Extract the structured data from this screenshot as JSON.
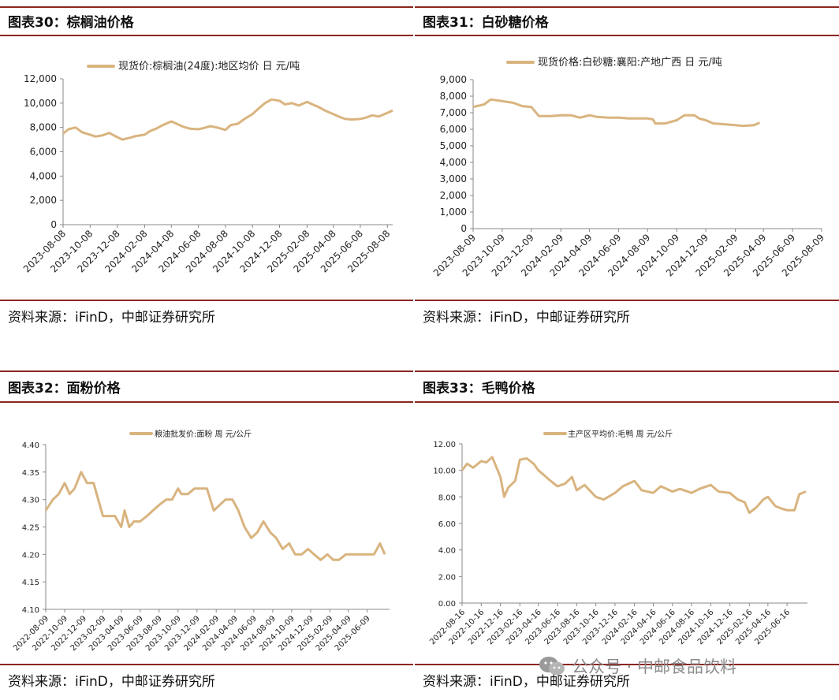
{
  "panels": [
    {
      "title": "图表30：棕榈油价格",
      "source": "资料来源：iFinD，中邮证券研究所"
    },
    {
      "title": "图表31：白砂糖价格",
      "source": "资料来源：iFinD，中邮证券研究所"
    },
    {
      "title": "图表32：面粉价格",
      "source": "资料来源：iFinD，中邮证券研究所"
    },
    {
      "title": "图表33：毛鸭价格",
      "source": "资料来源：iFinD，中邮证券研究所"
    }
  ],
  "watermark": "公众号 · 中邮食品饮料",
  "colors": {
    "line": "#d9b47f",
    "rule": "#8b2520",
    "axis": "#888888"
  },
  "chart_data": [
    {
      "type": "line",
      "title": "",
      "legend": "现货价:棕榈油(24度):地区均价 日 元/吨",
      "legend_position": "top-left",
      "grid": false,
      "ylim": [
        0,
        12000
      ],
      "yticks": [
        "0",
        "2,000",
        "4,000",
        "6,000",
        "8,000",
        "10,000",
        "12,000"
      ],
      "xticks": [
        "2023-08-08",
        "2023-10-08",
        "2023-12-08",
        "2024-02-08",
        "2024-04-08",
        "2024-06-08",
        "2024-08-08",
        "2024-10-08",
        "2024-12-08",
        "2025-02-08",
        "2025-04-08",
        "2025-06-08",
        "2025-08-08"
      ],
      "x_range": [
        "2023-08-08",
        "2025-08-20"
      ],
      "series": [
        {
          "name": "现货价:棕榈油(24度):地区均价 日 元/吨",
          "points": [
            [
              "2023-08-08",
              7500
            ],
            [
              "2023-08-20",
              7850
            ],
            [
              "2023-09-05",
              8000
            ],
            [
              "2023-09-20",
              7600
            ],
            [
              "2023-10-08",
              7400
            ],
            [
              "2023-10-20",
              7250
            ],
            [
              "2023-11-05",
              7350
            ],
            [
              "2023-11-20",
              7550
            ],
            [
              "2023-12-08",
              7200
            ],
            [
              "2023-12-20",
              7000
            ],
            [
              "2024-01-05",
              7150
            ],
            [
              "2024-01-20",
              7300
            ],
            [
              "2024-02-08",
              7400
            ],
            [
              "2024-02-20",
              7700
            ],
            [
              "2024-03-05",
              7900
            ],
            [
              "2024-03-20",
              8200
            ],
            [
              "2024-04-08",
              8500
            ],
            [
              "2024-04-20",
              8300
            ],
            [
              "2024-05-05",
              8050
            ],
            [
              "2024-05-20",
              7900
            ],
            [
              "2024-06-08",
              7850
            ],
            [
              "2024-06-20",
              7950
            ],
            [
              "2024-07-05",
              8100
            ],
            [
              "2024-07-20",
              8000
            ],
            [
              "2024-08-08",
              7800
            ],
            [
              "2024-08-20",
              8200
            ],
            [
              "2024-09-05",
              8300
            ],
            [
              "2024-09-20",
              8700
            ],
            [
              "2024-10-08",
              9100
            ],
            [
              "2024-10-20",
              9500
            ],
            [
              "2024-11-05",
              10000
            ],
            [
              "2024-11-20",
              10300
            ],
            [
              "2024-12-08",
              10200
            ],
            [
              "2024-12-20",
              9900
            ],
            [
              "2025-01-05",
              10000
            ],
            [
              "2025-01-20",
              9800
            ],
            [
              "2025-02-08",
              10100
            ],
            [
              "2025-02-20",
              9900
            ],
            [
              "2025-03-05",
              9700
            ],
            [
              "2025-03-20",
              9400
            ],
            [
              "2025-04-08",
              9100
            ],
            [
              "2025-04-20",
              8900
            ],
            [
              "2025-05-05",
              8700
            ],
            [
              "2025-05-20",
              8650
            ],
            [
              "2025-06-08",
              8700
            ],
            [
              "2025-06-20",
              8800
            ],
            [
              "2025-07-05",
              9000
            ],
            [
              "2025-07-20",
              8900
            ],
            [
              "2025-08-08",
              9200
            ],
            [
              "2025-08-20",
              9400
            ]
          ]
        }
      ]
    },
    {
      "type": "line",
      "title": "",
      "legend": "现货价格:白砂糖:襄阳:产地广西 日 元/吨",
      "legend_position": "top-left",
      "grid": false,
      "ylim": [
        0,
        9000
      ],
      "yticks": [
        "0",
        "1,000",
        "2,000",
        "3,000",
        "4,000",
        "5,000",
        "6,000",
        "7,000",
        "8,000",
        "9,000"
      ],
      "xticks": [
        "2023-08-09",
        "2023-10-09",
        "2023-12-09",
        "2024-02-09",
        "2024-04-09",
        "2024-06-09",
        "2024-08-09",
        "2024-10-09",
        "2024-12-09",
        "2025-02-09",
        "2025-04-09",
        "2025-06-09",
        "2025-08-09"
      ],
      "x_range": [
        "2023-08-09",
        "2025-08-09"
      ],
      "series": [
        {
          "name": "现货价格:白砂糖:襄阳:产地广西 日 元/吨",
          "points": [
            [
              "2023-08-09",
              7350
            ],
            [
              "2023-09-01",
              7500
            ],
            [
              "2023-09-15",
              7800
            ],
            [
              "2023-10-09",
              7700
            ],
            [
              "2023-11-01",
              7600
            ],
            [
              "2023-11-20",
              7400
            ],
            [
              "2023-12-09",
              7350
            ],
            [
              "2023-12-25",
              6800
            ],
            [
              "2024-01-20",
              6800
            ],
            [
              "2024-02-09",
              6850
            ],
            [
              "2024-03-01",
              6850
            ],
            [
              "2024-03-20",
              6700
            ],
            [
              "2024-04-09",
              6850
            ],
            [
              "2024-04-25",
              6750
            ],
            [
              "2024-05-20",
              6700
            ],
            [
              "2024-06-09",
              6700
            ],
            [
              "2024-07-01",
              6650
            ],
            [
              "2024-07-20",
              6650
            ],
            [
              "2024-08-09",
              6650
            ],
            [
              "2024-08-20",
              6600
            ],
            [
              "2024-08-25",
              6350
            ],
            [
              "2024-09-15",
              6350
            ],
            [
              "2024-10-09",
              6550
            ],
            [
              "2024-10-25",
              6850
            ],
            [
              "2024-11-15",
              6850
            ],
            [
              "2024-11-25",
              6650
            ],
            [
              "2024-12-09",
              6550
            ],
            [
              "2024-12-25",
              6350
            ],
            [
              "2025-01-20",
              6300
            ],
            [
              "2025-02-09",
              6250
            ],
            [
              "2025-02-25",
              6200
            ],
            [
              "2025-03-20",
              6250
            ],
            [
              "2025-04-01",
              6400
            ]
          ]
        }
      ]
    },
    {
      "type": "line",
      "title": "",
      "legend": "粮油批发价:面粉 周 元/公斤",
      "legend_position": "top-center",
      "grid": false,
      "ylim": [
        4.1,
        4.4
      ],
      "yticks": [
        "4.10",
        "4.15",
        "4.20",
        "4.25",
        "4.30",
        "4.35",
        "4.40"
      ],
      "xticks": [
        "2022-08-09",
        "2022-10-09",
        "2022-12-09",
        "2023-02-09",
        "2023-04-09",
        "2023-06-09",
        "2023-08-09",
        "2023-10-09",
        "2023-12-09",
        "2024-02-09",
        "2024-04-09",
        "2024-06-09",
        "2024-08-09",
        "2024-10-09",
        "2024-12-09",
        "2025-02-09",
        "2025-04-09",
        "2025-06-09"
      ],
      "x_range": [
        "2022-08-09",
        "2025-08-20"
      ],
      "series": [
        {
          "name": "粮油批发价:面粉 周 元/公斤",
          "points": [
            [
              "2022-08-09",
              4.28
            ],
            [
              "2022-09-01",
              4.3
            ],
            [
              "2022-09-20",
              4.31
            ],
            [
              "2022-10-09",
              4.33
            ],
            [
              "2022-10-25",
              4.31
            ],
            [
              "2022-11-10",
              4.32
            ],
            [
              "2022-12-01",
              4.35
            ],
            [
              "2022-12-20",
              4.33
            ],
            [
              "2023-01-10",
              4.33
            ],
            [
              "2023-01-25",
              4.3
            ],
            [
              "2023-02-09",
              4.27
            ],
            [
              "2023-03-01",
              4.27
            ],
            [
              "2023-03-20",
              4.27
            ],
            [
              "2023-04-09",
              4.25
            ],
            [
              "2023-04-20",
              4.28
            ],
            [
              "2023-05-05",
              4.25
            ],
            [
              "2023-05-20",
              4.26
            ],
            [
              "2023-06-09",
              4.26
            ],
            [
              "2023-07-01",
              4.27
            ],
            [
              "2023-07-20",
              4.28
            ],
            [
              "2023-08-09",
              4.29
            ],
            [
              "2023-09-01",
              4.3
            ],
            [
              "2023-09-20",
              4.3
            ],
            [
              "2023-10-09",
              4.32
            ],
            [
              "2023-10-20",
              4.31
            ],
            [
              "2023-11-10",
              4.31
            ],
            [
              "2023-12-01",
              4.32
            ],
            [
              "2023-12-20",
              4.32
            ],
            [
              "2024-01-10",
              4.32
            ],
            [
              "2024-02-01",
              4.28
            ],
            [
              "2024-02-20",
              4.29
            ],
            [
              "2024-03-10",
              4.3
            ],
            [
              "2024-04-01",
              4.3
            ],
            [
              "2024-04-20",
              4.28
            ],
            [
              "2024-05-10",
              4.25
            ],
            [
              "2024-06-01",
              4.23
            ],
            [
              "2024-06-20",
              4.24
            ],
            [
              "2024-07-10",
              4.26
            ],
            [
              "2024-08-01",
              4.24
            ],
            [
              "2024-08-20",
              4.23
            ],
            [
              "2024-09-10",
              4.21
            ],
            [
              "2024-10-01",
              4.22
            ],
            [
              "2024-10-20",
              4.2
            ],
            [
              "2024-11-10",
              4.2
            ],
            [
              "2024-12-01",
              4.21
            ],
            [
              "2024-12-20",
              4.2
            ],
            [
              "2025-01-10",
              4.19
            ],
            [
              "2025-02-01",
              4.2
            ],
            [
              "2025-02-20",
              4.19
            ],
            [
              "2025-03-10",
              4.19
            ],
            [
              "2025-04-01",
              4.2
            ],
            [
              "2025-05-01",
              4.2
            ],
            [
              "2025-06-01",
              4.2
            ],
            [
              "2025-07-01",
              4.2
            ],
            [
              "2025-07-20",
              4.22
            ],
            [
              "2025-08-05",
              4.2
            ]
          ]
        }
      ]
    },
    {
      "type": "line",
      "title": "",
      "legend": "主产区平均价:毛鸭 周 元/公斤",
      "legend_position": "top-center",
      "grid": false,
      "ylim": [
        0,
        12
      ],
      "yticks": [
        "0.00",
        "2.00",
        "4.00",
        "6.00",
        "8.00",
        "10.00",
        "12.00"
      ],
      "xticks": [
        "2022-08-16",
        "2022-10-16",
        "2022-12-16",
        "2023-02-16",
        "2023-04-16",
        "2023-06-16",
        "2023-08-16",
        "2023-10-16",
        "2023-12-16",
        "2024-02-16",
        "2024-04-16",
        "2024-06-16",
        "2024-08-16",
        "2024-10-16",
        "2024-12-16",
        "2025-02-16",
        "2025-04-16",
        "2025-06-16"
      ],
      "x_range": [
        "2022-08-16",
        "2025-08-20"
      ],
      "series": [
        {
          "name": "主产区平均价:毛鸭 周 元/公斤",
          "points": [
            [
              "2022-08-16",
              10.0
            ],
            [
              "2022-09-01",
              10.5
            ],
            [
              "2022-09-20",
              10.2
            ],
            [
              "2022-10-16",
              10.7
            ],
            [
              "2022-11-01",
              10.6
            ],
            [
              "2022-11-20",
              11.0
            ],
            [
              "2022-12-16",
              9.5
            ],
            [
              "2022-12-28",
              8.0
            ],
            [
              "2023-01-10",
              8.7
            ],
            [
              "2023-02-01",
              9.2
            ],
            [
              "2023-02-16",
              10.8
            ],
            [
              "2023-03-10",
              10.9
            ],
            [
              "2023-04-01",
              10.5
            ],
            [
              "2023-04-16",
              10.0
            ],
            [
              "2023-05-01",
              9.7
            ],
            [
              "2023-05-20",
              9.3
            ],
            [
              "2023-06-16",
              8.8
            ],
            [
              "2023-07-10",
              9.0
            ],
            [
              "2023-08-01",
              9.5
            ],
            [
              "2023-08-16",
              8.5
            ],
            [
              "2023-09-10",
              8.9
            ],
            [
              "2023-10-16",
              8.0
            ],
            [
              "2023-11-10",
              7.8
            ],
            [
              "2023-12-16",
              8.3
            ],
            [
              "2024-01-10",
              8.8
            ],
            [
              "2024-02-16",
              9.2
            ],
            [
              "2024-03-10",
              8.5
            ],
            [
              "2024-04-16",
              8.3
            ],
            [
              "2024-05-10",
              8.8
            ],
            [
              "2024-06-16",
              8.4
            ],
            [
              "2024-07-10",
              8.6
            ],
            [
              "2024-08-16",
              8.3
            ],
            [
              "2024-09-10",
              8.6
            ],
            [
              "2024-10-16",
              8.9
            ],
            [
              "2024-11-10",
              8.4
            ],
            [
              "2024-12-16",
              8.3
            ],
            [
              "2025-01-10",
              7.8
            ],
            [
              "2025-02-01",
              7.6
            ],
            [
              "2025-02-16",
              6.8
            ],
            [
              "2025-03-10",
              7.2
            ],
            [
              "2025-04-01",
              7.8
            ],
            [
              "2025-04-16",
              8.0
            ],
            [
              "2025-05-10",
              7.3
            ],
            [
              "2025-06-01",
              7.1
            ],
            [
              "2025-06-16",
              7.0
            ],
            [
              "2025-07-10",
              7.0
            ],
            [
              "2025-07-25",
              8.2
            ],
            [
              "2025-08-15",
              8.4
            ]
          ]
        }
      ]
    }
  ]
}
